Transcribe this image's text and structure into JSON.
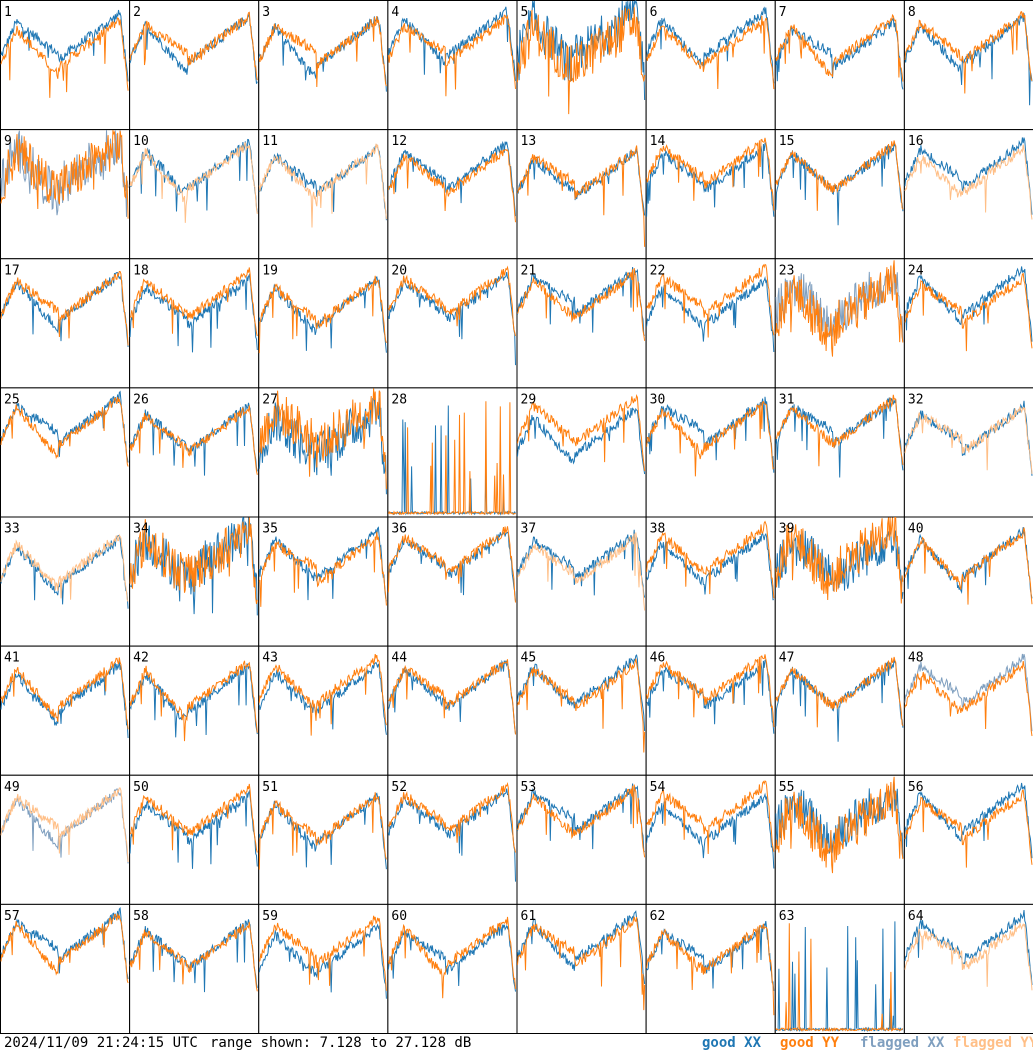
{
  "chart_data": {
    "type": "line",
    "layout": "8x8 small multiples",
    "panels": [
      1,
      2,
      3,
      4,
      5,
      6,
      7,
      8,
      9,
      10,
      11,
      12,
      13,
      14,
      15,
      16,
      17,
      18,
      19,
      20,
      21,
      22,
      23,
      24,
      25,
      26,
      27,
      28,
      29,
      30,
      31,
      32,
      33,
      34,
      35,
      36,
      37,
      38,
      39,
      40,
      41,
      42,
      43,
      44,
      45,
      46,
      47,
      48,
      49,
      50,
      51,
      52,
      53,
      54,
      55,
      56,
      57,
      58,
      59,
      60,
      61,
      62,
      63,
      64
    ],
    "panel_labels": [
      "1",
      "2",
      "3",
      "4",
      "5",
      "6",
      "7",
      "8",
      "9",
      "10",
      "11",
      "12",
      "13",
      "14",
      "15",
      "16",
      "17",
      "18",
      "19",
      "20",
      "21",
      "22",
      "23",
      "24",
      "25",
      "26",
      "27",
      "28",
      "29",
      "30",
      "31",
      "32",
      "33",
      "34",
      "35",
      "36",
      "37",
      "38",
      "39",
      "40",
      "41",
      "42",
      "43",
      "44",
      "45",
      "46",
      "47",
      "48",
      "49",
      "50",
      "51",
      "52",
      "53",
      "54",
      "55",
      "56",
      "57",
      "58",
      "59",
      "60",
      "61",
      "62",
      "63",
      "64"
    ],
    "series": [
      {
        "name": "good XX",
        "color": "#1f77b4"
      },
      {
        "name": "good YY",
        "color": "#ff7f0e"
      },
      {
        "name": "flagged XX",
        "color": "#7f9fbf"
      },
      {
        "name": "flagged YY",
        "color": "#ffbf87"
      }
    ],
    "ylim": [
      7.128,
      27.128
    ],
    "y_unit": "dB",
    "panel_profiles": {
      "flagged_xx_panels": [
        9,
        23,
        48,
        49
      ],
      "flagged_yy_panels": [
        10,
        11,
        16,
        32,
        33,
        37,
        49,
        64
      ],
      "spiky_panels": [
        28,
        63
      ],
      "noisy_panels": [
        5,
        9,
        23,
        27,
        28,
        34,
        39,
        55,
        63
      ]
    },
    "timestamp": "2024/11/09 21:24:15 UTC",
    "range_text": "range shown: 7.128 to 27.128 dB",
    "legend": [
      "good XX",
      "good YY",
      "flagged XX",
      "flagged YY"
    ]
  }
}
